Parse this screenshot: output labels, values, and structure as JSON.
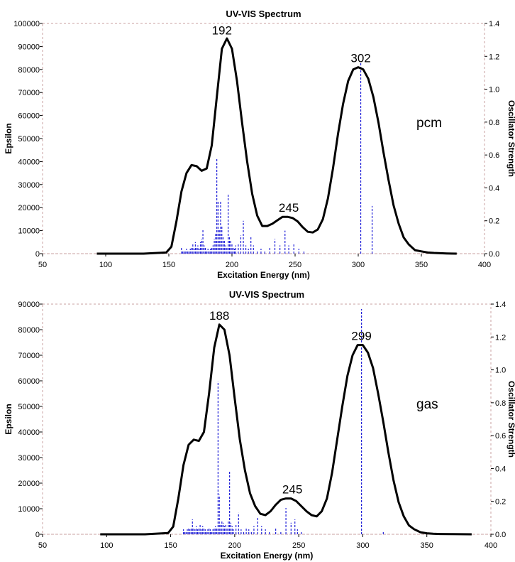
{
  "chart_data": [
    {
      "type": "line",
      "title": "UV-VIS Spectrum",
      "xlabel": "Excitation Energy (nm)",
      "ylabel": "Epsilon",
      "y2label": "Oscillator Strength",
      "tag": "pcm",
      "xlim": [
        50,
        400
      ],
      "ylim": [
        0,
        100000
      ],
      "y2lim": [
        0,
        1.4
      ],
      "xticks": [
        "50",
        "100",
        "150",
        "200",
        "250",
        "300",
        "350",
        "400"
      ],
      "yticks": [
        "0",
        "10000",
        "20000",
        "30000",
        "40000",
        "50000",
        "60000",
        "70000",
        "80000",
        "90000",
        "100000"
      ],
      "y2ticks": [
        "0.0",
        "0.2",
        "0.4",
        "0.6",
        "0.8",
        "1.0",
        "1.2",
        "1.4"
      ],
      "peak_labels": [
        {
          "text": "192",
          "x": 192,
          "y": 93000
        },
        {
          "text": "245",
          "x": 245,
          "y": 16000
        },
        {
          "text": "302",
          "x": 302,
          "y": 81000
        }
      ],
      "series": [
        {
          "x": [
            93,
            130,
            148,
            152,
            156,
            160,
            164,
            168,
            172,
            176,
            180,
            184,
            188,
            192,
            196,
            200,
            204,
            208,
            212,
            216,
            220,
            224,
            228,
            232,
            236,
            240,
            244,
            248,
            252,
            256,
            260,
            264,
            268,
            272,
            276,
            280,
            284,
            288,
            292,
            296,
            300,
            304,
            308,
            312,
            316,
            320,
            324,
            328,
            332,
            336,
            340,
            345,
            350,
            355,
            360,
            370,
            378
          ],
          "y": [
            0,
            0,
            500,
            3000,
            14000,
            27000,
            35000,
            38500,
            38000,
            36000,
            37000,
            47000,
            68000,
            89000,
            93500,
            89000,
            75000,
            57000,
            40000,
            26000,
            16500,
            12000,
            12000,
            13000,
            14500,
            16000,
            16000,
            15500,
            14000,
            11500,
            9500,
            9200,
            10500,
            15000,
            24000,
            37000,
            52000,
            65000,
            75000,
            80000,
            81000,
            80000,
            76000,
            68000,
            57000,
            44000,
            32000,
            21000,
            13000,
            7000,
            4000,
            1500,
            1000,
            500,
            300,
            100,
            0
          ]
        }
      ],
      "sticks": {
        "x": [
          160,
          161,
          162,
          163,
          164,
          165,
          166,
          167,
          168,
          169,
          170,
          171,
          172,
          173,
          174,
          175,
          176,
          177,
          178,
          179,
          180,
          181,
          182,
          183,
          184,
          185,
          186,
          187,
          188,
          189,
          190,
          191,
          192,
          193,
          194,
          195,
          196,
          197,
          198,
          199,
          200,
          201,
          202,
          203,
          205,
          207,
          209,
          211,
          213,
          215,
          217,
          220,
          223,
          226,
          230,
          234,
          238,
          242,
          245,
          249,
          253,
          257,
          302,
          311
        ],
        "y": [
          0.04,
          0.02,
          0.02,
          0.02,
          0.03,
          0.02,
          0.02,
          0.03,
          0.04,
          0.06,
          0.03,
          0.07,
          0.04,
          0.05,
          0.03,
          0.07,
          0.09,
          0.15,
          0.05,
          0.04,
          0.02,
          0.03,
          0.02,
          0.03,
          0.04,
          0.05,
          0.09,
          0.12,
          0.58,
          0.32,
          0.15,
          0.32,
          0.17,
          0.1,
          0.08,
          0.05,
          0.04,
          0.36,
          0.1,
          0.08,
          0.06,
          0.04,
          0.03,
          0.05,
          0.06,
          0.11,
          0.2,
          0.05,
          0.03,
          0.1,
          0.05,
          0.02,
          0.03,
          0.02,
          0.04,
          0.09,
          0.05,
          0.14,
          0.05,
          0.06,
          0.03,
          0.02,
          1.17,
          0.29
        ]
      }
    },
    {
      "type": "line",
      "title": "UV-VIS Spectrum",
      "xlabel": "Excitation Energy (nm)",
      "ylabel": "Epsilon",
      "y2label": "Oscillator Strength",
      "tag": "gas",
      "xlim": [
        50,
        400
      ],
      "ylim": [
        0,
        90000
      ],
      "y2lim": [
        0,
        1.4
      ],
      "xticks": [
        "50",
        "100",
        "150",
        "200",
        "250",
        "300",
        "350",
        "400"
      ],
      "yticks": [
        "0",
        "10000",
        "20000",
        "30000",
        "40000",
        "50000",
        "60000",
        "70000",
        "80000",
        "90000"
      ],
      "y2ticks": [
        "0.0",
        "0.2",
        "0.4",
        "0.6",
        "0.8",
        "1.0",
        "1.2",
        "1.4"
      ],
      "peak_labels": [
        {
          "text": "188",
          "x": 188,
          "y": 82000
        },
        {
          "text": "245",
          "x": 245,
          "y": 14000
        },
        {
          "text": "299",
          "x": 299,
          "y": 74000
        }
      ],
      "series": [
        {
          "x": [
            95,
            130,
            148,
            152,
            156,
            160,
            164,
            168,
            172,
            176,
            180,
            184,
            188,
            192,
            196,
            200,
            204,
            208,
            212,
            216,
            220,
            224,
            228,
            232,
            236,
            240,
            244,
            248,
            252,
            256,
            260,
            264,
            268,
            272,
            276,
            280,
            284,
            288,
            292,
            296,
            300,
            304,
            308,
            312,
            316,
            320,
            324,
            328,
            332,
            336,
            340,
            345,
            350,
            355,
            360,
            370,
            385
          ],
          "y": [
            0,
            0,
            500,
            3000,
            14000,
            27000,
            35000,
            37000,
            36500,
            40000,
            55000,
            73000,
            82000,
            80000,
            70000,
            53000,
            37000,
            25000,
            16000,
            11000,
            8000,
            7500,
            9000,
            11500,
            13500,
            14000,
            14000,
            13000,
            11000,
            9000,
            7500,
            7000,
            9000,
            14000,
            24000,
            37000,
            50000,
            62000,
            70000,
            74000,
            74000,
            71000,
            65000,
            55000,
            44000,
            32000,
            21000,
            12500,
            7000,
            3500,
            2000,
            800,
            400,
            200,
            100,
            50,
            0
          ]
        }
      ],
      "sticks": {
        "x": [
          160,
          161,
          162,
          163,
          164,
          165,
          166,
          167,
          168,
          169,
          170,
          171,
          172,
          173,
          174,
          175,
          176,
          177,
          178,
          179,
          180,
          181,
          182,
          183,
          184,
          185,
          186,
          187,
          188,
          189,
          190,
          191,
          192,
          193,
          194,
          195,
          196,
          197,
          198,
          199,
          201,
          203,
          205,
          207,
          209,
          211,
          213,
          215,
          218,
          221,
          224,
          227,
          232,
          236,
          240,
          244,
          247,
          249,
          252,
          299,
          316
        ],
        "y": [
          0.03,
          0.02,
          0.02,
          0.03,
          0.04,
          0.03,
          0.04,
          0.09,
          0.04,
          0.03,
          0.05,
          0.03,
          0.04,
          0.06,
          0.03,
          0.05,
          0.04,
          0.03,
          0.02,
          0.03,
          0.04,
          0.03,
          0.02,
          0.03,
          0.04,
          0.05,
          0.04,
          0.93,
          0.24,
          0.06,
          0.08,
          0.07,
          0.05,
          0.06,
          0.04,
          0.08,
          0.38,
          0.07,
          0.05,
          0.03,
          0.06,
          0.13,
          0.03,
          0.02,
          0.04,
          0.03,
          0.02,
          0.05,
          0.1,
          0.05,
          0.03,
          0.02,
          0.04,
          0.02,
          0.16,
          0.07,
          0.09,
          0.03,
          0.02,
          1.37,
          0.02
        ]
      }
    }
  ]
}
